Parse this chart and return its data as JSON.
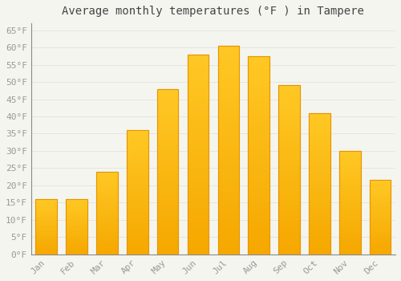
{
  "title": "Average monthly temperatures (°F ) in Tampere",
  "months": [
    "Jan",
    "Feb",
    "Mar",
    "Apr",
    "May",
    "Jun",
    "Jul",
    "Aug",
    "Sep",
    "Oct",
    "Nov",
    "Dec"
  ],
  "values": [
    16,
    16,
    24,
    36,
    48,
    58,
    60.5,
    57.5,
    49,
    41,
    30,
    21.5
  ],
  "bar_color_top": "#FFC825",
  "bar_color_bottom": "#F5A800",
  "bar_edge_color": "#E59500",
  "background_color": "#F5F5F0",
  "grid_color": "#DDDDDD",
  "tick_label_color": "#999999",
  "title_color": "#444444",
  "ylim": [
    0,
    67
  ],
  "yticks": [
    0,
    5,
    10,
    15,
    20,
    25,
    30,
    35,
    40,
    45,
    50,
    55,
    60,
    65
  ],
  "title_fontsize": 10,
  "tick_fontsize": 8
}
